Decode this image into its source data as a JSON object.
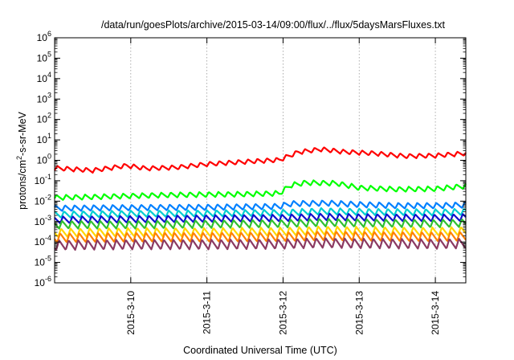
{
  "chart_data": {
    "type": "line",
    "title": "/data/run/goesPlots/archive/2015-03-14/09:00/flux/../flux/5daysMarsFluxes.txt",
    "xlabel": "Coordinated Universal Time (UTC)",
    "ylabel": "protons/cm²-s-sr-MeV",
    "ylabel_parts": {
      "prefix": "protons/cm",
      "superscript": "2",
      "suffix": "-s-sr-MeV"
    },
    "yscale": "log",
    "ylim": [
      1e-06,
      1000000.0
    ],
    "xlim": [
      9.0,
      14.4
    ],
    "x_units": "day of March 2015 (UTC)",
    "y_ticks": [
      {
        "value": 1e-06,
        "base": "10",
        "exp": "-6"
      },
      {
        "value": 1e-05,
        "base": "10",
        "exp": "-5"
      },
      {
        "value": 0.0001,
        "base": "10",
        "exp": "-4"
      },
      {
        "value": 0.001,
        "base": "10",
        "exp": "-3"
      },
      {
        "value": 0.01,
        "base": "10",
        "exp": "-2"
      },
      {
        "value": 0.1,
        "base": "10",
        "exp": "-1"
      },
      {
        "value": 1,
        "base": "10",
        "exp": "0"
      },
      {
        "value": 10,
        "base": "10",
        "exp": "1"
      },
      {
        "value": 100,
        "base": "10",
        "exp": "2"
      },
      {
        "value": 1000.0,
        "base": "10",
        "exp": "3"
      },
      {
        "value": 10000.0,
        "base": "10",
        "exp": "4"
      },
      {
        "value": 100000.0,
        "base": "10",
        "exp": "5"
      },
      {
        "value": 1000000.0,
        "base": "10",
        "exp": "6"
      }
    ],
    "x_ticks": [
      {
        "value": 10,
        "label": "2015-3-10"
      },
      {
        "value": 11,
        "label": "2015-3-11"
      },
      {
        "value": 12,
        "label": "2015-3-12"
      },
      {
        "value": 13,
        "label": "2015-3-13"
      },
      {
        "value": 14,
        "label": "2015-3-14"
      }
    ],
    "grid": "vertical dotted at x ticks",
    "legend": "none",
    "sawtooth_period_days": 0.125,
    "series": [
      {
        "color": "#ff0000",
        "anchors": [
          [
            9.0,
            0.42
          ],
          [
            9.5,
            0.32
          ],
          [
            9.95,
            0.55
          ],
          [
            10.2,
            0.4
          ],
          [
            10.6,
            0.45
          ],
          [
            11.0,
            0.65
          ],
          [
            11.5,
            0.85
          ],
          [
            11.95,
            1.05
          ],
          [
            12.2,
            2.5
          ],
          [
            12.5,
            3.5
          ],
          [
            12.8,
            2.6
          ],
          [
            13.2,
            2.2
          ],
          [
            13.6,
            1.6
          ],
          [
            14.0,
            1.7
          ],
          [
            14.4,
            2.2
          ]
        ],
        "amplitude": 0.22
      },
      {
        "color": "#00ff00",
        "anchors": [
          [
            9.0,
            0.015
          ],
          [
            9.5,
            0.016
          ],
          [
            10.0,
            0.018
          ],
          [
            10.5,
            0.02
          ],
          [
            11.0,
            0.021
          ],
          [
            11.5,
            0.022
          ],
          [
            11.95,
            0.024
          ],
          [
            12.1,
            0.06
          ],
          [
            12.3,
            0.08
          ],
          [
            12.7,
            0.075
          ],
          [
            13.0,
            0.045
          ],
          [
            13.5,
            0.038
          ],
          [
            14.0,
            0.04
          ],
          [
            14.4,
            0.055
          ]
        ],
        "amplitude": 0.25
      },
      {
        "color": "#0080ff",
        "anchors": [
          [
            9.0,
            0.0045
          ],
          [
            10.0,
            0.0048
          ],
          [
            11.0,
            0.005
          ],
          [
            11.95,
            0.0055
          ],
          [
            12.1,
            0.0075
          ],
          [
            12.6,
            0.008
          ],
          [
            13.0,
            0.0068
          ],
          [
            13.5,
            0.006
          ],
          [
            14.0,
            0.006
          ],
          [
            14.4,
            0.0065
          ]
        ],
        "amplitude": 0.28
      },
      {
        "color": "#00ced1",
        "anchors": [
          [
            9.0,
            0.0022
          ],
          [
            10.0,
            0.0024
          ],
          [
            11.0,
            0.0025
          ],
          [
            12.0,
            0.0027
          ],
          [
            12.5,
            0.0032
          ],
          [
            13.0,
            0.003
          ],
          [
            14.0,
            0.0028
          ],
          [
            14.4,
            0.003
          ]
        ],
        "amplitude": 0.32
      },
      {
        "color": "#1010cc",
        "anchors": [
          [
            9.0,
            0.0012
          ],
          [
            10.0,
            0.0013
          ],
          [
            11.0,
            0.0014
          ],
          [
            12.0,
            0.0015
          ],
          [
            12.5,
            0.0017
          ],
          [
            13.0,
            0.0016
          ],
          [
            14.0,
            0.0015
          ],
          [
            14.4,
            0.0016
          ]
        ],
        "amplitude": 0.34
      },
      {
        "color": "#30c030",
        "anchors": [
          [
            9.0,
            0.0007
          ],
          [
            10.0,
            0.0007
          ],
          [
            11.0,
            0.00075
          ],
          [
            12.0,
            0.0008
          ],
          [
            12.5,
            0.0009
          ],
          [
            13.0,
            0.00085
          ],
          [
            14.0,
            0.0008
          ],
          [
            14.4,
            0.00085
          ]
        ],
        "amplitude": 0.38
      },
      {
        "color": "#ffd700",
        "anchors": [
          [
            9.0,
            0.00028
          ],
          [
            10.0,
            0.0003
          ],
          [
            11.0,
            0.0003
          ],
          [
            12.0,
            0.00032
          ],
          [
            12.5,
            0.00036
          ],
          [
            13.0,
            0.00034
          ],
          [
            14.0,
            0.00032
          ],
          [
            14.4,
            0.00034
          ]
        ],
        "amplitude": 0.42
      },
      {
        "color": "#ff8000",
        "anchors": [
          [
            9.0,
            0.00016
          ],
          [
            10.0,
            0.00017
          ],
          [
            11.0,
            0.00017
          ],
          [
            12.0,
            0.00018
          ],
          [
            12.5,
            0.0002
          ],
          [
            13.0,
            0.00019
          ],
          [
            14.0,
            0.00018
          ],
          [
            14.4,
            0.00019
          ]
        ],
        "amplitude": 0.45
      },
      {
        "color": "#8b3a62",
        "anchors": [
          [
            9.0,
            7e-05
          ],
          [
            10.0,
            7.5e-05
          ],
          [
            11.0,
            7.5e-05
          ],
          [
            12.0,
            8e-05
          ],
          [
            12.5,
            9e-05
          ],
          [
            13.0,
            8.5e-05
          ],
          [
            14.0,
            8e-05
          ],
          [
            14.4,
            8.5e-05
          ]
        ],
        "amplitude": 0.48
      }
    ]
  }
}
